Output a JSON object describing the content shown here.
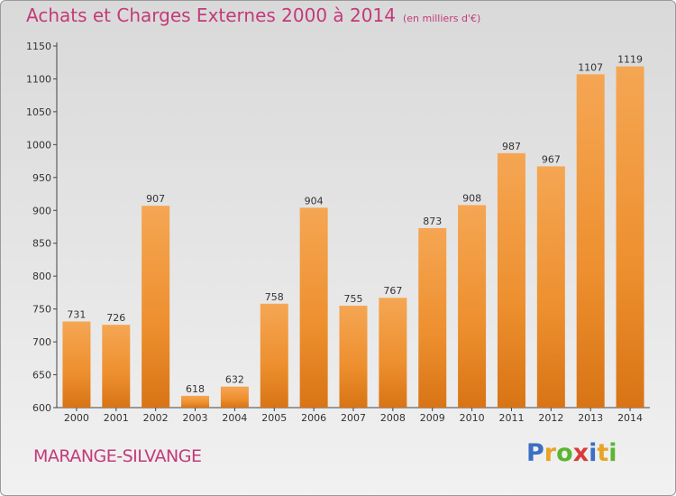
{
  "chart_data": {
    "type": "bar",
    "title": "Achats et Charges Externes 2000 à 2014",
    "subtitle": "(en milliers d'€)",
    "categories": [
      "2000",
      "2001",
      "2002",
      "2003",
      "2004",
      "2005",
      "2006",
      "2007",
      "2008",
      "2009",
      "2010",
      "2011",
      "2012",
      "2013",
      "2014"
    ],
    "values": [
      731,
      726,
      907,
      618,
      632,
      758,
      904,
      755,
      767,
      873,
      908,
      987,
      967,
      1107,
      1119
    ],
    "ylim": [
      600,
      1150
    ],
    "yticks": [
      600,
      650,
      700,
      750,
      800,
      850,
      900,
      950,
      1000,
      1050,
      1100,
      1150
    ],
    "grid": false,
    "data_labels": true,
    "bar_color": "#f0963a"
  },
  "footer": {
    "commune": "MARANGE-SILVANGE",
    "logo": [
      "P",
      "r",
      "o",
      "x",
      "i",
      "t",
      "i"
    ],
    "logo_colors": [
      "#3b6fc4",
      "#e8a427",
      "#5bb531",
      "#d83b3b",
      "#3b6fc4",
      "#e8a427",
      "#5bb531"
    ]
  },
  "colors": {
    "title": "#c33a7a",
    "axis": "#444444"
  }
}
